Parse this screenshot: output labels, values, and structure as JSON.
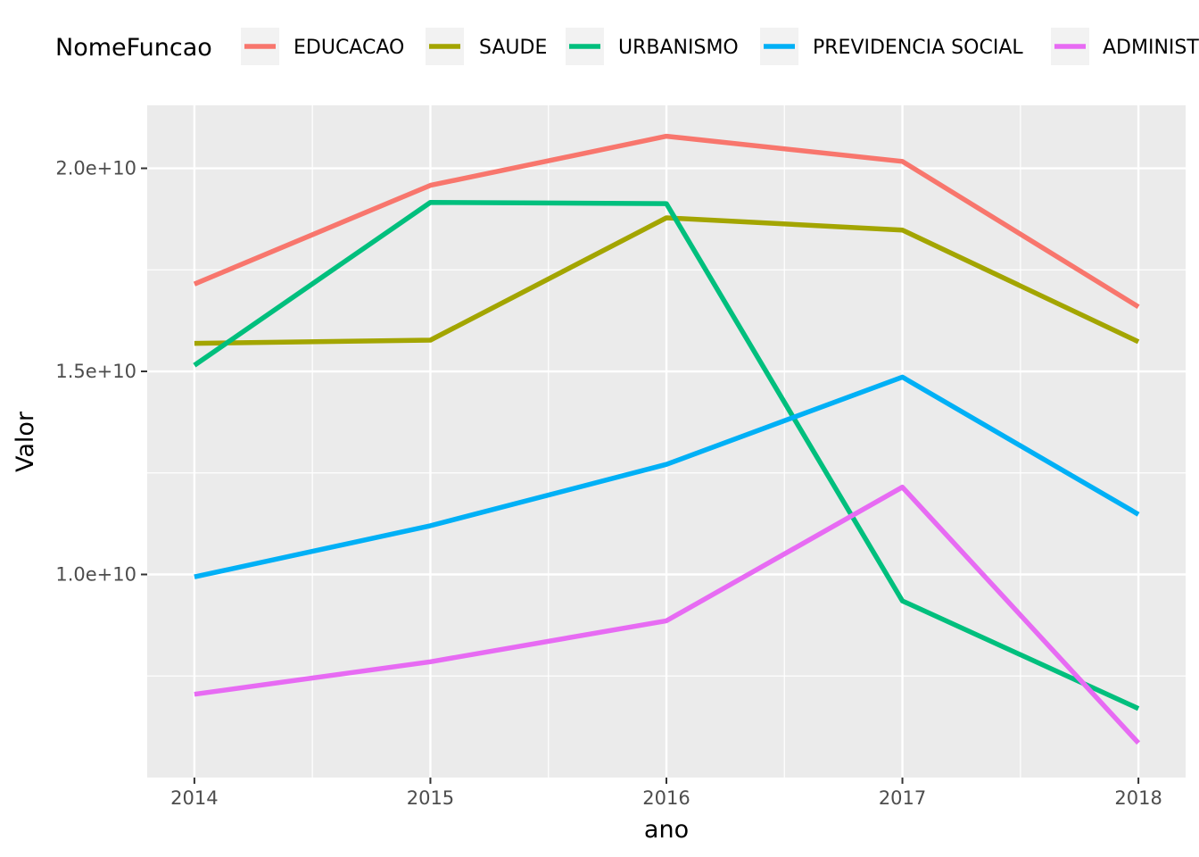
{
  "chart_data": {
    "type": "line",
    "title": "",
    "xlabel": "ano",
    "ylabel": "Valor",
    "legend_title": "NomeFuncao",
    "legend_position": "top",
    "grid": true,
    "x": [
      2014,
      2015,
      2016,
      2017,
      2018
    ],
    "x_ticks": [
      2014,
      2015,
      2016,
      2017,
      2018
    ],
    "x_tick_labels": [
      "2014",
      "2015",
      "2016",
      "2017",
      "2018"
    ],
    "xlim": [
      2013.8,
      2018.2
    ],
    "y_ticks": [
      10000000000,
      15000000000,
      20000000000
    ],
    "y_tick_labels": [
      "1.0e+10",
      "1.5e+10",
      "2.0e+10"
    ],
    "y_minor_ticks": [
      7500000000,
      12500000000,
      17500000000
    ],
    "ylim": [
      5000000000,
      21550000000
    ],
    "series": [
      {
        "name": "EDUCACAO",
        "color": "#F8766D",
        "values": [
          17150000000,
          19580000000,
          20790000000,
          20170000000,
          16590000000
        ]
      },
      {
        "name": "SAUDE",
        "color": "#A3A500",
        "values": [
          15690000000,
          15770000000,
          18780000000,
          18480000000,
          15730000000
        ]
      },
      {
        "name": "URBANISMO",
        "color": "#00BF7D",
        "values": [
          15150000000,
          19160000000,
          19130000000,
          9350000000,
          6700000000
        ]
      },
      {
        "name": "PREVIDENCIA SOCIAL",
        "color": "#00B0F6",
        "values": [
          9940000000,
          11200000000,
          12710000000,
          14860000000,
          11480000000
        ]
      },
      {
        "name": "ADMINISTRACAO",
        "color": "#E76BF3",
        "values": [
          7050000000,
          7850000000,
          8860000000,
          12150000000,
          5850000000
        ]
      }
    ]
  }
}
